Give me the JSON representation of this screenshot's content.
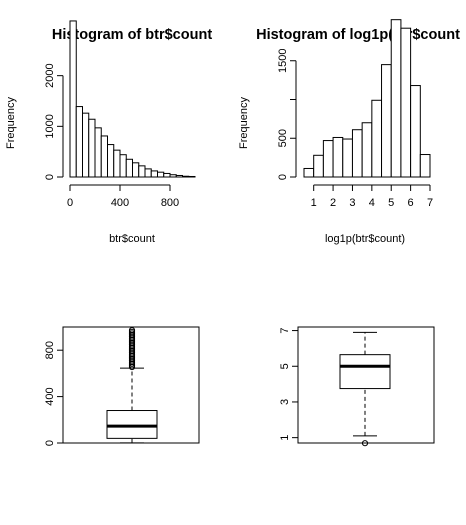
{
  "chart_data": [
    {
      "type": "bar",
      "title": "Histogram of btr$count",
      "xlabel": "btr$count",
      "ylabel": "Frequency",
      "xlim": [
        0,
        1000
      ],
      "ylim": [
        0,
        3000
      ],
      "x_ticks": [
        0,
        400,
        800
      ],
      "y_ticks": [
        0,
        1000,
        2000
      ],
      "y_tick_labels": [
        "0",
        "1000",
        "2000"
      ],
      "bin_edges": [
        0,
        50,
        100,
        150,
        200,
        250,
        300,
        350,
        400,
        450,
        500,
        550,
        600,
        650,
        700,
        750,
        800,
        850,
        900,
        950,
        1000
      ],
      "values": [
        3080,
        1390,
        1260,
        1140,
        970,
        810,
        640,
        530,
        440,
        350,
        280,
        220,
        160,
        120,
        95,
        70,
        45,
        30,
        15,
        10
      ]
    },
    {
      "type": "bar",
      "title": "Histogram of log1p(btr$count",
      "xlabel": "log1p(btr$count)",
      "ylabel": "Frequency",
      "xlim": [
        0.5,
        7
      ],
      "ylim": [
        0,
        2000
      ],
      "x_ticks": [
        1,
        2,
        3,
        4,
        5,
        6,
        7
      ],
      "y_ticks": [
        0,
        500,
        1000,
        1500
      ],
      "y_tick_labels": [
        "0",
        "500",
        "",
        "1500"
      ],
      "bin_edges": [
        0.5,
        1,
        1.5,
        2,
        2.5,
        3,
        3.5,
        4,
        4.5,
        5,
        5.5,
        6,
        6.5,
        7
      ],
      "values": [
        110,
        280,
        470,
        510,
        490,
        610,
        700,
        990,
        1450,
        2030,
        1920,
        1180,
        290
      ]
    },
    {
      "type": "box",
      "ylim": [
        0,
        1000
      ],
      "y_ticks": [
        0,
        400,
        800
      ],
      "whisker_low": 1,
      "q1": 40,
      "median": 145,
      "q3": 280,
      "whisker_high": 645,
      "outlier_range": [
        655,
        977
      ]
    },
    {
      "type": "box",
      "ylim": [
        0.7,
        7.2
      ],
      "y_ticks": [
        1,
        3,
        5,
        7
      ],
      "whisker_low": 1.1,
      "q1": 3.75,
      "median": 5.0,
      "q3": 5.65,
      "whisker_high": 6.9,
      "outliers": [
        0.69
      ]
    }
  ]
}
